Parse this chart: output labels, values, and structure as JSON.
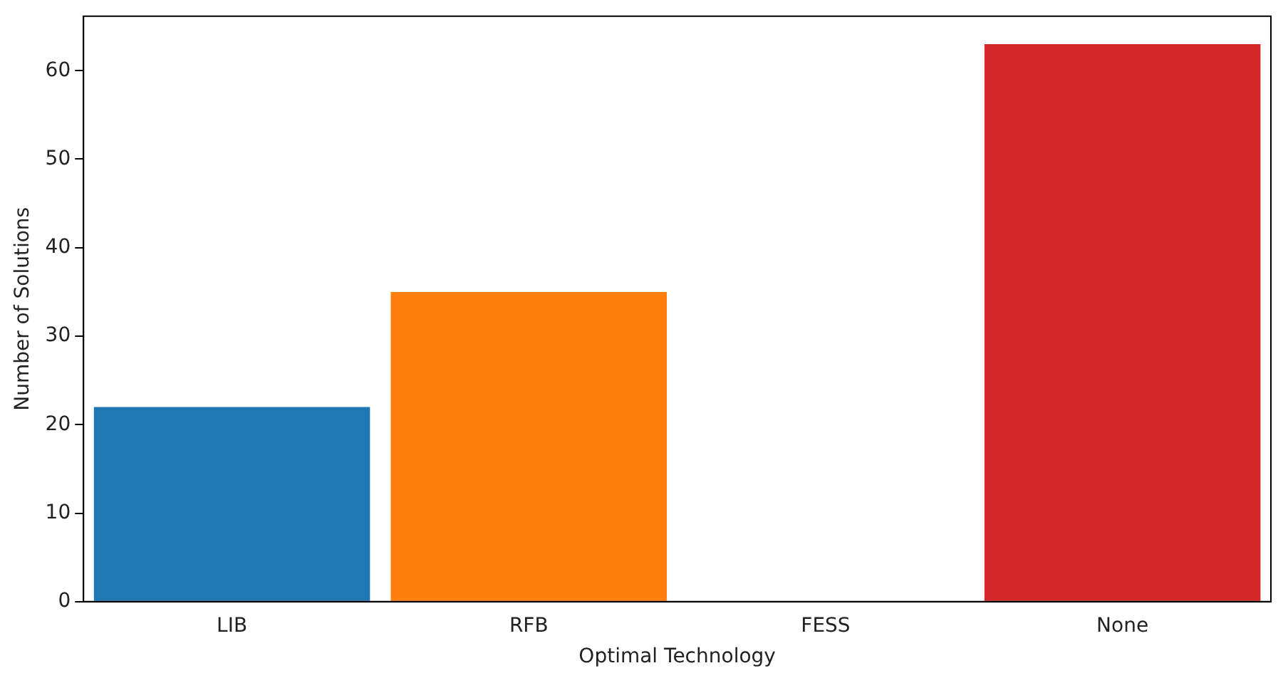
{
  "chart_data": {
    "type": "bar",
    "xlabel": "Optimal Technology",
    "ylabel": "Number of Solutions",
    "categories": [
      "LIB",
      "RFB",
      "FESS",
      "None"
    ],
    "values": [
      22,
      35,
      0,
      63
    ],
    "colors": [
      "#1f77b4",
      "#ff7f0e",
      "#2ca02c",
      "#d62728"
    ],
    "ylim": [
      0,
      66.15
    ],
    "yticks": [
      0,
      10,
      20,
      30,
      40,
      50,
      60
    ],
    "grid": false,
    "legend": false
  }
}
